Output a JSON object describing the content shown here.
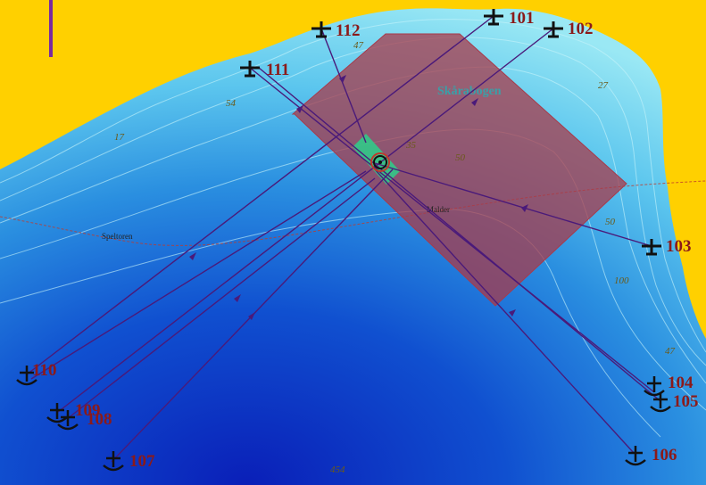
{
  "map": {
    "place_name": "Skårabogen",
    "marker_label": "Malder",
    "contour_label": "Speltoren",
    "depths": [
      "47",
      "54",
      "17",
      "27",
      "50",
      "47",
      "454",
      "100",
      "35",
      "50"
    ],
    "colors": {
      "land": "#ffd000",
      "shallow": "#8fe3f2",
      "mid": "#2a8fe0",
      "deep": "#0a1fb8",
      "survey_area": "#a83a4a",
      "target_area": "#2bd08a",
      "track": "#4a1a7a",
      "station_label": "#8b1a1a"
    }
  },
  "stations": [
    {
      "id": "101",
      "type": "plane"
    },
    {
      "id": "102",
      "type": "plane"
    },
    {
      "id": "103",
      "type": "plane"
    },
    {
      "id": "104",
      "type": "anchor"
    },
    {
      "id": "105",
      "type": "anchor"
    },
    {
      "id": "106",
      "type": "anchor"
    },
    {
      "id": "107",
      "type": "anchor"
    },
    {
      "id": "108",
      "type": "anchor"
    },
    {
      "id": "109",
      "type": "anchor"
    },
    {
      "id": "110",
      "type": "anchor"
    },
    {
      "id": "111",
      "type": "plane"
    },
    {
      "id": "112",
      "type": "plane"
    }
  ]
}
